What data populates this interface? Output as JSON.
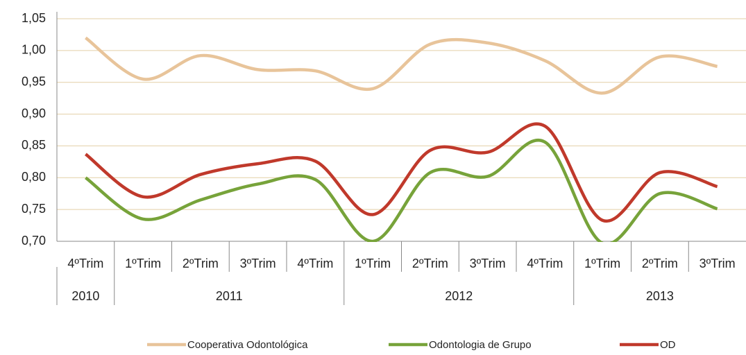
{
  "chart_data": {
    "type": "line",
    "groups": [
      {
        "label": "2010",
        "categories": [
          "4ºTrim"
        ]
      },
      {
        "label": "2011",
        "categories": [
          "1ºTrim",
          "2ºTrim",
          "3ºTrim",
          "4ºTrim"
        ]
      },
      {
        "label": "2012",
        "categories": [
          "1ºTrim",
          "2ºTrim",
          "3ºTrim",
          "4ºTrim"
        ]
      },
      {
        "label": "2013",
        "categories": [
          "1ºTrim",
          "2ºTrim",
          "3ºTrim"
        ]
      }
    ],
    "series": [
      {
        "name": "Cooperativa Odontológica",
        "color": "#e8c49a",
        "values": [
          1.02,
          0.955,
          0.992,
          0.97,
          0.968,
          0.94,
          1.01,
          1.012,
          0.984,
          0.933,
          0.99,
          0.975
        ]
      },
      {
        "name": "Odontologia de Grupo",
        "color": "#77a33a",
        "values": [
          0.8,
          0.735,
          0.765,
          0.79,
          0.797,
          0.7,
          0.808,
          0.802,
          0.856,
          0.697,
          0.775,
          0.751
        ]
      },
      {
        "name": "OD",
        "color": "#c0392b",
        "values": [
          0.837,
          0.77,
          0.805,
          0.822,
          0.826,
          0.742,
          0.843,
          0.84,
          0.881,
          0.733,
          0.808,
          0.786
        ]
      }
    ],
    "ylim": [
      0.7,
      1.05
    ],
    "yticks": [
      {
        "value": 0.7,
        "label": "0,70"
      },
      {
        "value": 0.75,
        "label": "0,75"
      },
      {
        "value": 0.8,
        "label": "0,80"
      },
      {
        "value": 0.85,
        "label": "0,85"
      },
      {
        "value": 0.9,
        "label": "0,90"
      },
      {
        "value": 0.95,
        "label": "0,95"
      },
      {
        "value": 1.0,
        "label": "1,00"
      },
      {
        "value": 1.05,
        "label": "1,05"
      }
    ],
    "grid": true,
    "grid_color": "#e3cfa6",
    "legend": "bottom"
  }
}
